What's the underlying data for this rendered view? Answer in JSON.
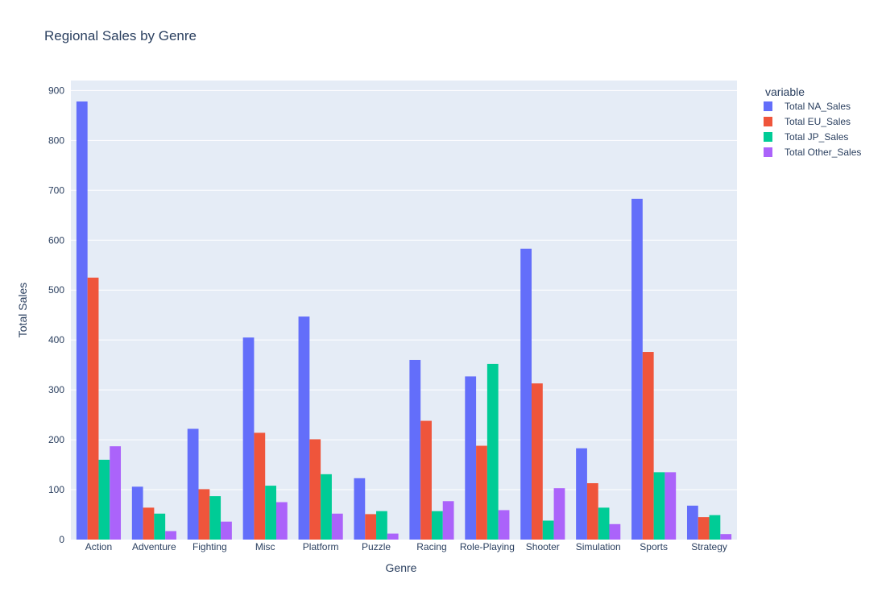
{
  "chart_data": {
    "type": "bar",
    "title": "Regional Sales by Genre",
    "xlabel": "Genre",
    "ylabel": "Total Sales",
    "ylim": [
      0,
      920
    ],
    "yticks": [
      0,
      100,
      200,
      300,
      400,
      500,
      600,
      700,
      800,
      900
    ],
    "grid": true,
    "legend_title": "variable",
    "legend_position": "top-right",
    "plot_bg": "#e5ecf6",
    "categories": [
      "Action",
      "Adventure",
      "Fighting",
      "Misc",
      "Platform",
      "Puzzle",
      "Racing",
      "Role-Playing",
      "Shooter",
      "Simulation",
      "Sports",
      "Strategy"
    ],
    "series": [
      {
        "name": "Total NA_Sales",
        "color": "#636efa",
        "values": [
          878,
          106,
          222,
          405,
          447,
          123,
          360,
          327,
          583,
          183,
          683,
          68
        ]
      },
      {
        "name": "Total EU_Sales",
        "color": "#ef553b",
        "values": [
          525,
          64,
          101,
          214,
          201,
          51,
          238,
          188,
          313,
          113,
          376,
          45
        ]
      },
      {
        "name": "Total JP_Sales",
        "color": "#00cc96",
        "values": [
          160,
          52,
          87,
          108,
          131,
          57,
          57,
          352,
          38,
          64,
          135,
          49
        ]
      },
      {
        "name": "Total Other_Sales",
        "color": "#ab63fa",
        "values": [
          187,
          17,
          36,
          75,
          52,
          12,
          77,
          59,
          103,
          31,
          135,
          11
        ]
      }
    ]
  }
}
